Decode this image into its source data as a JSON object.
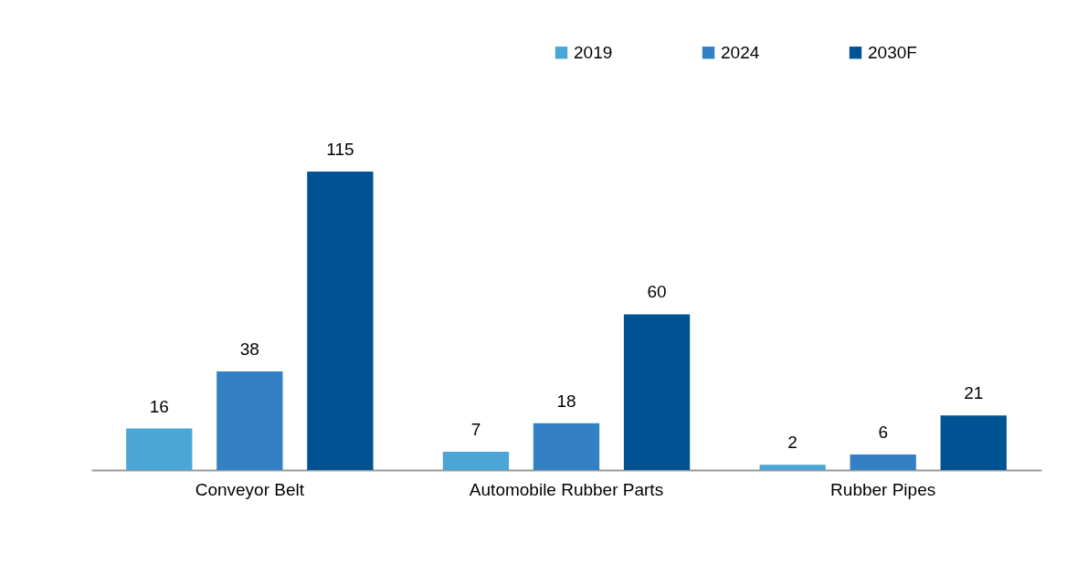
{
  "chart_data": {
    "type": "bar",
    "categories": [
      "Conveyor Belt",
      "Automobile Rubber Parts",
      "Rubber Pipes"
    ],
    "series": [
      {
        "name": "2019",
        "color": "#4ba6d6",
        "values": [
          16,
          7,
          2
        ]
      },
      {
        "name": "2024",
        "color": "#3380c4",
        "values": [
          38,
          18,
          6
        ]
      },
      {
        "name": "2030F",
        "color": "#005392",
        "values": [
          115,
          60,
          21
        ]
      }
    ],
    "data_labels": true,
    "legend": "top right",
    "grid": false
  }
}
